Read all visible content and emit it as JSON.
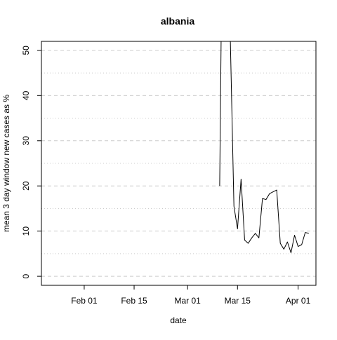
{
  "chart_data": {
    "type": "line",
    "title": "albania",
    "xlabel": "date",
    "ylabel": "mean  3  day window new cases as %",
    "x_ticks": [
      {
        "date": "2020-02-01",
        "label": "Feb 01"
      },
      {
        "date": "2020-02-15",
        "label": "Feb 15"
      },
      {
        "date": "2020-03-01",
        "label": "Mar 01"
      },
      {
        "date": "2020-03-15",
        "label": "Mar 15"
      },
      {
        "date": "2020-04-01",
        "label": "Apr 01"
      }
    ],
    "y_ticks": [
      0,
      10,
      20,
      30,
      40,
      50
    ],
    "xlim": [
      "2020-01-20",
      "2020-04-06"
    ],
    "ylim": [
      -2,
      52
    ],
    "grid": {
      "major_y": [
        0,
        10,
        20,
        30,
        40,
        50
      ],
      "minor_y": [
        5,
        15,
        25,
        35,
        45
      ]
    },
    "series": [
      {
        "x": [
          "2020-03-10",
          "2020-03-11",
          "2020-03-12",
          "2020-03-13",
          "2020-03-14",
          "2020-03-15",
          "2020-03-16",
          "2020-03-17",
          "2020-03-18",
          "2020-03-19",
          "2020-03-20",
          "2020-03-21",
          "2020-03-22",
          "2020-03-23",
          "2020-03-24",
          "2020-03-25",
          "2020-03-26",
          "2020-03-27",
          "2020-03-28",
          "2020-03-29",
          "2020-03-30",
          "2020-03-31",
          "2020-04-01",
          "2020-04-02",
          "2020-04-03",
          "2020-04-04"
        ],
        "y": [
          20,
          100,
          100,
          52,
          15.5,
          10.5,
          21.5,
          8,
          7.3,
          8.5,
          9.5,
          8.5,
          17.2,
          17,
          18.3,
          18.7,
          19.1,
          7.3,
          6,
          7.6,
          5.2,
          9.1,
          6.6,
          7,
          9.7,
          9.5
        ]
      }
    ]
  }
}
